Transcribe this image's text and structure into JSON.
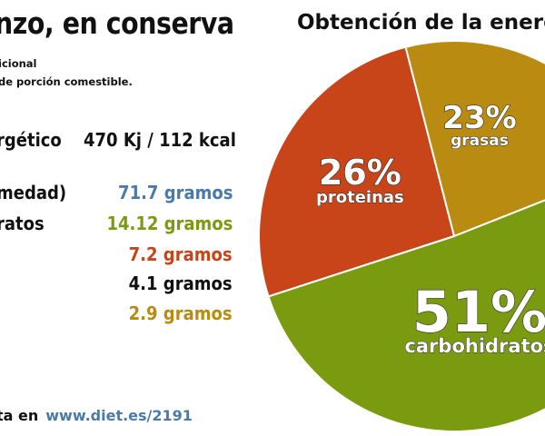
{
  "left_panel": {
    "title": "nzo, en conserva",
    "subtitle_line1": "icional",
    "subtitle_line2": "de porción comestible.",
    "energy": {
      "label": "rgético",
      "value": "470 Kj / 112 kcal",
      "color": "#111111"
    },
    "nutrients": [
      {
        "label": "medad)",
        "value": "71.7 gramos",
        "color": "#4a7aa8"
      },
      {
        "label": "ratos",
        "value": "14.12 gramos",
        "color": "#7a9a10"
      },
      {
        "label": "",
        "value": "7.2 gramos",
        "color": "#c8451a"
      },
      {
        "label": "",
        "value": "4.1 gramos",
        "color": "#111111"
      },
      {
        "label": "",
        "value": "2.9 gramos",
        "color": "#b98b10"
      }
    ],
    "footer_prefix": "ta en",
    "footer_url": "www.diet.es/2191"
  },
  "chart_data": {
    "type": "pie",
    "title": "Obtención de la energía",
    "slices": [
      {
        "label": "proteinas",
        "percent_label": "26%",
        "value": 26,
        "color": "#c8451a"
      },
      {
        "label": "grasas",
        "percent_label": "23%",
        "value": 23,
        "color": "#b98b10"
      },
      {
        "label": "carbohidratos",
        "percent_label": "51%",
        "value": 51,
        "color": "#7a9a10"
      }
    ]
  }
}
